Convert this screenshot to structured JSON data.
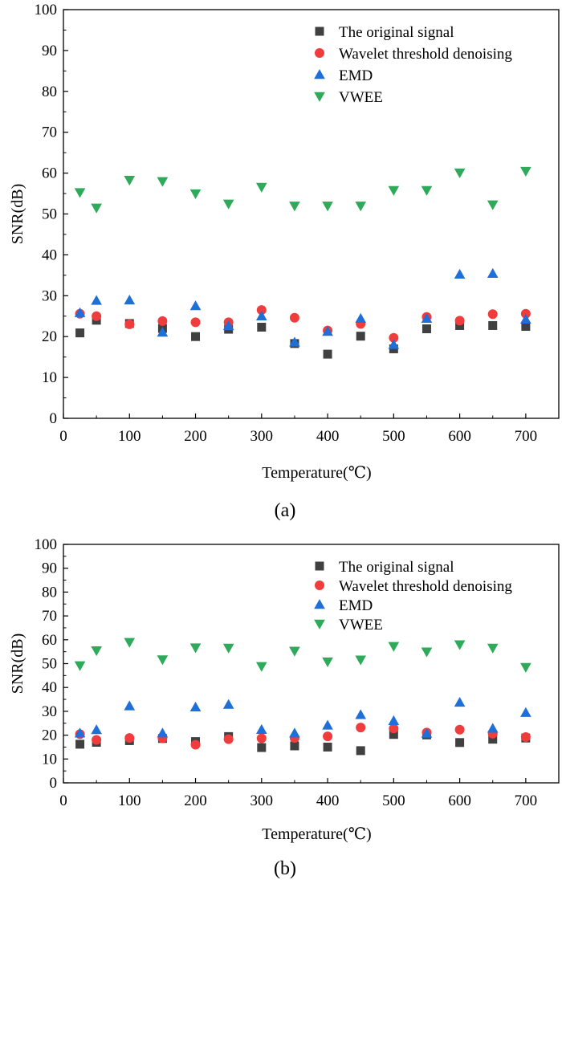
{
  "chart_data": [
    {
      "type": "scatter",
      "panel_label": "(a)",
      "xlabel": "Temperature(℃)",
      "ylabel": "SNR(dB)",
      "xlim": [
        0,
        750
      ],
      "ylim": [
        0,
        100
      ],
      "xticks": [
        "0",
        "100",
        "200",
        "300",
        "400",
        "500",
        "600",
        "700"
      ],
      "yticks": [
        "0",
        "10",
        "20",
        "30",
        "40",
        "50",
        "60",
        "70",
        "80",
        "90",
        "100"
      ],
      "legend_position": "top-right",
      "x": [
        25,
        50,
        100,
        150,
        200,
        250,
        300,
        350,
        400,
        450,
        500,
        550,
        600,
        650,
        700
      ],
      "series": [
        {
          "name": "The original signal",
          "marker": "square",
          "color": "#404040",
          "values": [
            20.9,
            24.0,
            23.2,
            22.0,
            20.0,
            21.8,
            22.3,
            18.3,
            15.7,
            20.1,
            17.0,
            21.9,
            22.7,
            22.7,
            22.5
          ]
        },
        {
          "name": "Wavelet threshold denoising",
          "marker": "circle",
          "color": "#f03c3c",
          "values": [
            25.6,
            25.0,
            23.0,
            23.8,
            23.5,
            23.5,
            26.5,
            24.6,
            21.5,
            23.1,
            19.7,
            24.8,
            23.9,
            25.5,
            25.6
          ]
        },
        {
          "name": "EMD",
          "marker": "triangle-up",
          "color": "#1f6fd8",
          "values": [
            25.8,
            28.8,
            28.9,
            21.0,
            27.5,
            22.6,
            25.0,
            18.6,
            21.2,
            24.4,
            18.0,
            24.4,
            35.2,
            35.4,
            24.2
          ]
        },
        {
          "name": "VWEE",
          "marker": "triangle-down",
          "color": "#2eaa5a",
          "values": [
            55.3,
            51.5,
            58.3,
            58.0,
            55.0,
            52.5,
            56.6,
            52.0,
            52.0,
            52.0,
            55.8,
            55.8,
            60.1,
            52.3,
            60.5
          ]
        }
      ]
    },
    {
      "type": "scatter",
      "panel_label": "(b)",
      "xlabel": "Temperature(℃)",
      "ylabel": "SNR(dB)",
      "xlim": [
        0,
        750
      ],
      "ylim": [
        0,
        100
      ],
      "xticks": [
        "0",
        "100",
        "200",
        "300",
        "400",
        "500",
        "600",
        "700"
      ],
      "yticks": [
        "0",
        "10",
        "20",
        "30",
        "40",
        "50",
        "60",
        "70",
        "80",
        "90",
        "100"
      ],
      "legend_position": "top-right",
      "x": [
        25,
        50,
        100,
        150,
        200,
        250,
        300,
        350,
        400,
        450,
        500,
        550,
        600,
        650,
        700
      ],
      "series": [
        {
          "name": "The original signal",
          "marker": "square",
          "color": "#404040",
          "values": [
            16.2,
            17.0,
            17.7,
            18.6,
            17.3,
            19.4,
            14.8,
            15.5,
            15.0,
            13.5,
            20.3,
            20.1,
            16.9,
            18.3,
            18.8
          ]
        },
        {
          "name": "Wavelet threshold denoising",
          "marker": "circle",
          "color": "#f03c3c",
          "values": [
            20.4,
            18.0,
            18.8,
            18.7,
            16.0,
            18.3,
            18.7,
            18.8,
            19.5,
            23.2,
            22.8,
            21.1,
            22.3,
            20.6,
            19.2
          ]
        },
        {
          "name": "EMD",
          "marker": "triangle-up",
          "color": "#1f6fd8",
          "values": [
            20.8,
            22.2,
            32.2,
            20.8,
            31.7,
            32.8,
            22.3,
            20.8,
            24.1,
            28.5,
            26.0,
            20.7,
            33.7,
            22.8,
            29.4
          ]
        },
        {
          "name": "VWEE",
          "marker": "triangle-down",
          "color": "#2eaa5a",
          "values": [
            49.2,
            55.5,
            59.0,
            51.7,
            56.7,
            56.6,
            48.9,
            55.3,
            50.8,
            51.6,
            57.3,
            55.0,
            58.0,
            56.6,
            48.5
          ]
        }
      ]
    }
  ]
}
